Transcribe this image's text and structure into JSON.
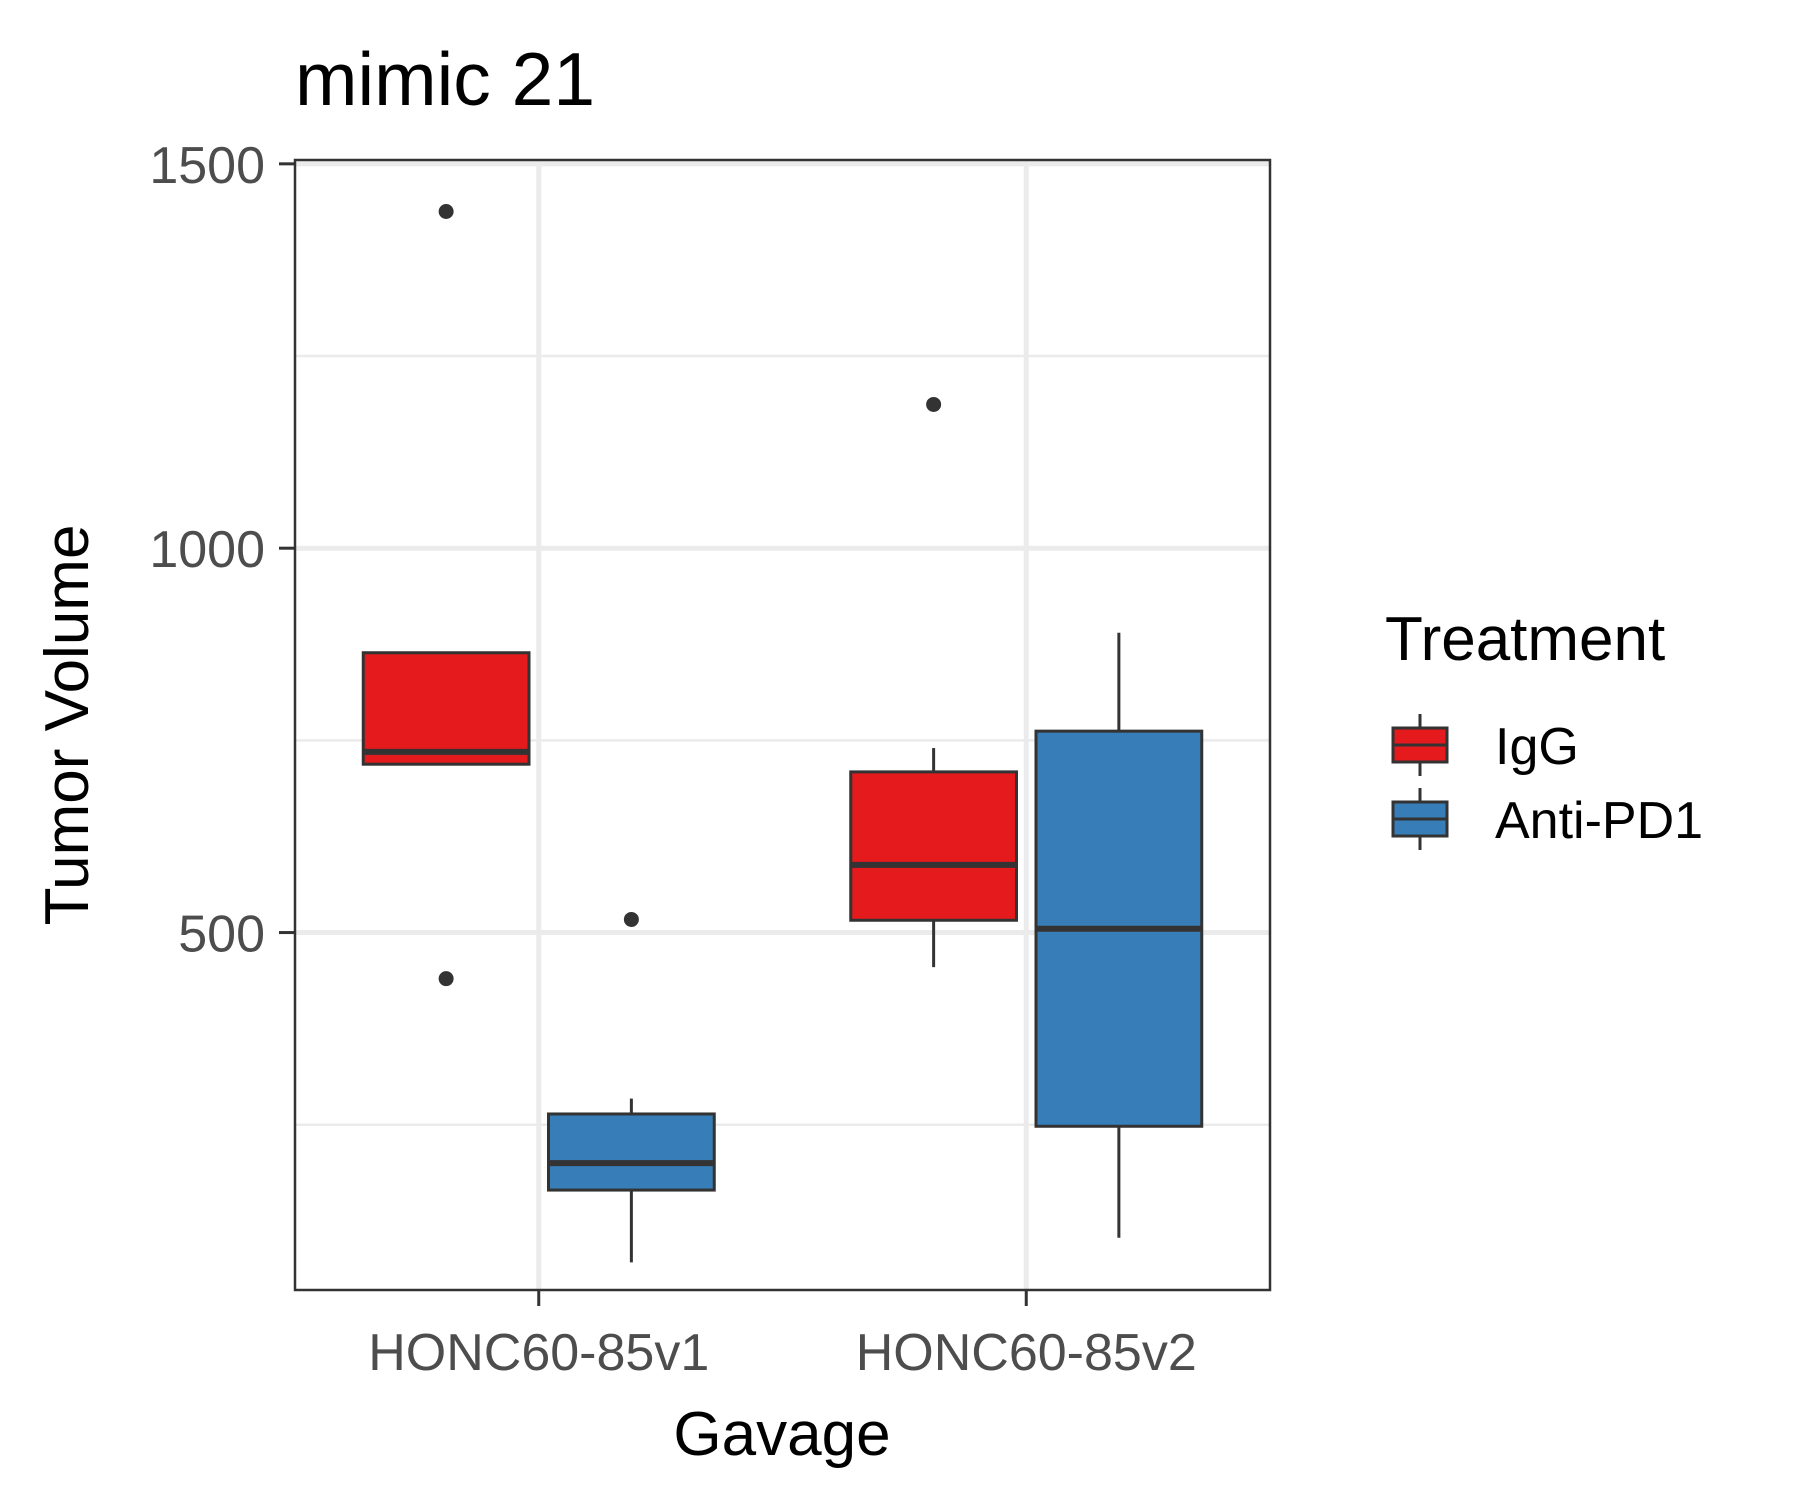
{
  "chart_data": {
    "type": "boxplot",
    "title": "mimic 21",
    "xlabel": "Gavage",
    "ylabel": "Tumor Volume",
    "categories": [
      "HONC60-85v1",
      "HONC60-85v2"
    ],
    "ylim": [
      35,
      1505
    ],
    "yticks": [
      500,
      1000,
      1500
    ],
    "grid": true,
    "legend": {
      "title": "Treatment",
      "position": "right",
      "entries": [
        {
          "label": "IgG",
          "color": "#E41A1C"
        },
        {
          "label": "Anti-PD1",
          "color": "#377EB8"
        }
      ]
    },
    "series": [
      {
        "name": "IgG",
        "color": "#E41A1C",
        "boxes": [
          {
            "category": "HONC60-85v1",
            "whisker_low": 719,
            "q1": 719,
            "median": 735,
            "q3": 864,
            "whisker_high": 864,
            "outliers": [
              1438,
              440
            ]
          },
          {
            "category": "HONC60-85v2",
            "whisker_low": 455,
            "q1": 516,
            "median": 588,
            "q3": 709,
            "whisker_high": 740,
            "outliers": [
              1187
            ]
          }
        ]
      },
      {
        "name": "Anti-PD1",
        "color": "#377EB8",
        "boxes": [
          {
            "category": "HONC60-85v1",
            "whisker_low": 71,
            "q1": 165,
            "median": 200,
            "q3": 264,
            "whisker_high": 284,
            "outliers": [
              517
            ]
          },
          {
            "category": "HONC60-85v2",
            "whisker_low": 103,
            "q1": 248,
            "median": 505,
            "q3": 762,
            "whisker_high": 890,
            "outliers": []
          }
        ]
      }
    ]
  }
}
